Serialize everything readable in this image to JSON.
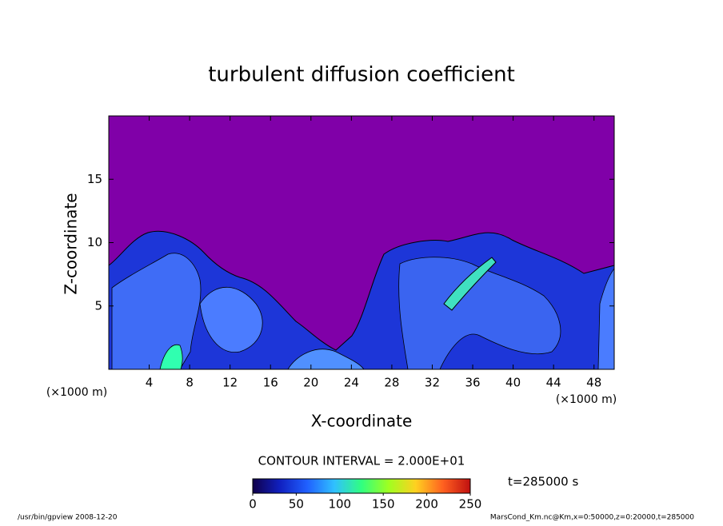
{
  "chart_data": {
    "type": "heatmap",
    "title": "turbulent diffusion coefficient",
    "xlabel": "X-coordinate",
    "ylabel": "Z-coordinate",
    "unit_label": "(×1000 m)",
    "xlim": [
      0,
      50
    ],
    "xticks": [
      4,
      8,
      12,
      16,
      20,
      24,
      28,
      32,
      36,
      40,
      44,
      48
    ],
    "ylim": [
      0,
      20
    ],
    "yticks": [
      5,
      10,
      15
    ],
    "background_color": "#8000a8",
    "colorbar": {
      "lim": [
        0,
        250
      ],
      "ticks": [
        0,
        50,
        100,
        150,
        200,
        250
      ],
      "colors": [
        "#10004a",
        "#1020c0",
        "#2060ff",
        "#30c0ff",
        "#30ff80",
        "#a0ff20",
        "#ffd020",
        "#ff6020",
        "#c01010"
      ]
    },
    "contour_interval_label": "CONTOUR INTERVAL = 2.000E+01",
    "time_label": "t=285000 s",
    "footer_left": "/usr/bin/gpview  2008-12-20",
    "footer_right": "MarsCond_Km.nc@Km,x=0:50000,z=0:20000,t=285000"
  }
}
